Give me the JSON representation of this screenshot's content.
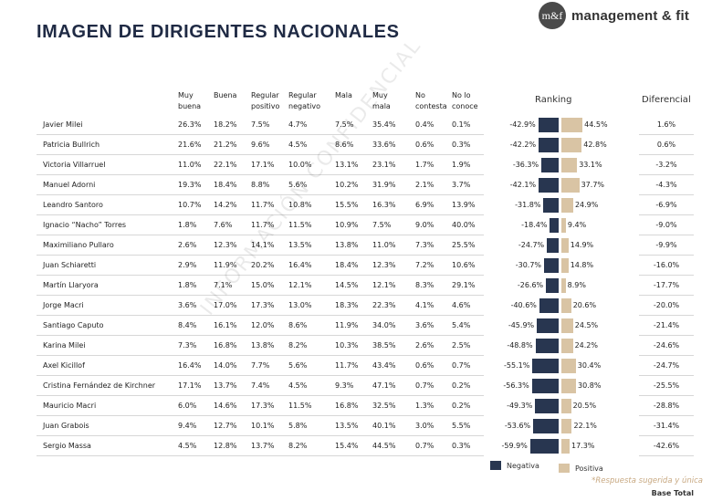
{
  "header": {
    "title": "IMAGEN DE DIRIGENTES NACIONALES",
    "brand_logo": "m&f",
    "brand_name": "management & fit"
  },
  "columns": [
    "Muy\nbuena",
    "Buena",
    "Regular\npositivo",
    "Regular\nnegativo",
    "Mala",
    "Muy\nmala",
    "No\ncontesta",
    "No lo\nconoce"
  ],
  "sections": {
    "ranking": "Ranking",
    "diferencial": "Diferencial"
  },
  "legend": {
    "negativa": "Negativa",
    "positiva": "Positiva",
    "neg_color": "#283650",
    "pos_color": "#d9c4a4"
  },
  "footer": {
    "note": "*Respuesta sugerida y única",
    "base": "Base Total"
  },
  "watermark": "INFORMACIÓN CONFIDENCIAL",
  "chart_data": {
    "type": "table",
    "rows": [
      {
        "name": "Javier Milei",
        "values": [
          "26.3%",
          "18.2%",
          "7.5%",
          "4.7%",
          "7.5%",
          "35.4%",
          "0.4%",
          "0.1%"
        ],
        "neg": "-42.9%",
        "pos": "44.5%",
        "neg_v": 42.9,
        "pos_v": 44.5,
        "diff": "1.6%"
      },
      {
        "name": "Patricia Bullrich",
        "values": [
          "21.6%",
          "21.2%",
          "9.6%",
          "4.5%",
          "8.6%",
          "33.6%",
          "0.6%",
          "0.3%"
        ],
        "neg": "-42.2%",
        "pos": "42.8%",
        "neg_v": 42.2,
        "pos_v": 42.8,
        "diff": "0.6%"
      },
      {
        "name": "Victoria Villarruel",
        "values": [
          "11.0%",
          "22.1%",
          "17.1%",
          "10.0%",
          "13.1%",
          "23.1%",
          "1.7%",
          "1.9%"
        ],
        "neg": "-36.3%",
        "pos": "33.1%",
        "neg_v": 36.3,
        "pos_v": 33.1,
        "diff": "-3.2%"
      },
      {
        "name": "Manuel Adorni",
        "values": [
          "19.3%",
          "18.4%",
          "8.8%",
          "5.6%",
          "10.2%",
          "31.9%",
          "2.1%",
          "3.7%"
        ],
        "neg": "-42.1%",
        "pos": "37.7%",
        "neg_v": 42.1,
        "pos_v": 37.7,
        "diff": "-4.3%"
      },
      {
        "name": "Leandro Santoro",
        "values": [
          "10.7%",
          "14.2%",
          "11.7%",
          "10.8%",
          "15.5%",
          "16.3%",
          "6.9%",
          "13.9%"
        ],
        "neg": "-31.8%",
        "pos": "24.9%",
        "neg_v": 31.8,
        "pos_v": 24.9,
        "diff": "-6.9%"
      },
      {
        "name": "Ignacio “Nacho” Torres",
        "values": [
          "1.8%",
          "7.6%",
          "11.7%",
          "11.5%",
          "10.9%",
          "7.5%",
          "9.0%",
          "40.0%"
        ],
        "neg": "-18.4%",
        "pos": "9.4%",
        "neg_v": 18.4,
        "pos_v": 9.4,
        "diff": "-9.0%"
      },
      {
        "name": "Maximiliano Pullaro",
        "values": [
          "2.6%",
          "12.3%",
          "14.1%",
          "13.5%",
          "13.8%",
          "11.0%",
          "7.3%",
          "25.5%"
        ],
        "neg": "-24.7%",
        "pos": "14.9%",
        "neg_v": 24.7,
        "pos_v": 14.9,
        "diff": "-9.9%"
      },
      {
        "name": "Juan Schiaretti",
        "values": [
          "2.9%",
          "11.9%",
          "20.2%",
          "16.4%",
          "18.4%",
          "12.3%",
          "7.2%",
          "10.6%"
        ],
        "neg": "-30.7%",
        "pos": "14.8%",
        "neg_v": 30.7,
        "pos_v": 14.8,
        "diff": "-16.0%"
      },
      {
        "name": "Martín Llaryora",
        "values": [
          "1.8%",
          "7.1%",
          "15.0%",
          "12.1%",
          "14.5%",
          "12.1%",
          "8.3%",
          "29.1%"
        ],
        "neg": "-26.6%",
        "pos": "8.9%",
        "neg_v": 26.6,
        "pos_v": 8.9,
        "diff": "-17.7%"
      },
      {
        "name": "Jorge Macri",
        "values": [
          "3.6%",
          "17.0%",
          "17.3%",
          "13.0%",
          "18.3%",
          "22.3%",
          "4.1%",
          "4.6%"
        ],
        "neg": "-40.6%",
        "pos": "20.6%",
        "neg_v": 40.6,
        "pos_v": 20.6,
        "diff": "-20.0%"
      },
      {
        "name": "Santiago Caputo",
        "values": [
          "8.4%",
          "16.1%",
          "12.0%",
          "8.6%",
          "11.9%",
          "34.0%",
          "3.6%",
          "5.4%"
        ],
        "neg": "-45.9%",
        "pos": "24.5%",
        "neg_v": 45.9,
        "pos_v": 24.5,
        "diff": "-21.4%"
      },
      {
        "name": "Karina Milei",
        "values": [
          "7.3%",
          "16.8%",
          "13.8%",
          "8.2%",
          "10.3%",
          "38.5%",
          "2.6%",
          "2.5%"
        ],
        "neg": "-48.8%",
        "pos": "24.2%",
        "neg_v": 48.8,
        "pos_v": 24.2,
        "diff": "-24.6%"
      },
      {
        "name": "Axel Kicillof",
        "values": [
          "16.4%",
          "14.0%",
          "7.7%",
          "5.6%",
          "11.7%",
          "43.4%",
          "0.6%",
          "0.7%"
        ],
        "neg": "-55.1%",
        "pos": "30.4%",
        "neg_v": 55.1,
        "pos_v": 30.4,
        "diff": "-24.7%"
      },
      {
        "name": "Cristina Fernández de Kirchner",
        "values": [
          "17.1%",
          "13.7%",
          "7.4%",
          "4.5%",
          "9.3%",
          "47.1%",
          "0.7%",
          "0.2%"
        ],
        "neg": "-56.3%",
        "pos": "30.8%",
        "neg_v": 56.3,
        "pos_v": 30.8,
        "diff": "-25.5%"
      },
      {
        "name": "Mauricio Macri",
        "values": [
          "6.0%",
          "14.6%",
          "17.3%",
          "11.5%",
          "16.8%",
          "32.5%",
          "1.3%",
          "0.2%"
        ],
        "neg": "-49.3%",
        "pos": "20.5%",
        "neg_v": 49.3,
        "pos_v": 20.5,
        "diff": "-28.8%"
      },
      {
        "name": "Juan Grabois",
        "values": [
          "9.4%",
          "12.7%",
          "10.1%",
          "5.8%",
          "13.5%",
          "40.1%",
          "3.0%",
          "5.5%"
        ],
        "neg": "-53.6%",
        "pos": "22.1%",
        "neg_v": 53.6,
        "pos_v": 22.1,
        "diff": "-31.4%"
      },
      {
        "name": "Sergio Massa",
        "values": [
          "4.5%",
          "12.8%",
          "13.7%",
          "8.2%",
          "15.4%",
          "44.5%",
          "0.7%",
          "0.3%"
        ],
        "neg": "-59.9%",
        "pos": "17.3%",
        "neg_v": 59.9,
        "pos_v": 17.3,
        "diff": "-42.6%"
      }
    ]
  }
}
